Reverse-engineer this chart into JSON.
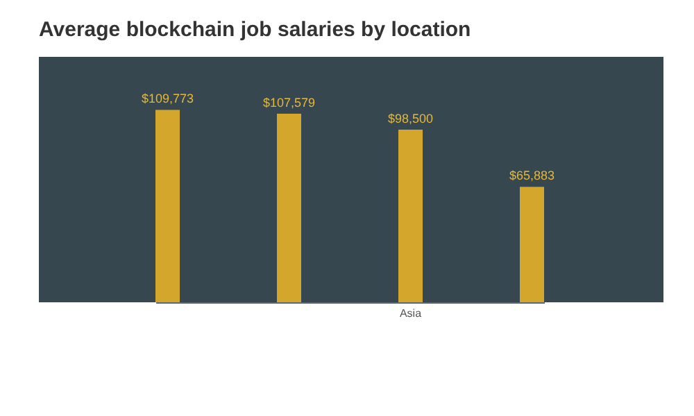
{
  "chart_data": {
    "type": "bar",
    "title": "Average blockchain job salaries by location",
    "categories": [
      null,
      null,
      "Asia",
      null
    ],
    "values": [
      109773,
      107579,
      98500,
      65883
    ],
    "value_labels": [
      "$109,773",
      "$107,579",
      "$98,500",
      "$65,883"
    ],
    "color": "#d4a72c",
    "ylim": [
      0,
      140000
    ],
    "tick_labels": "x",
    "grid": false
  }
}
